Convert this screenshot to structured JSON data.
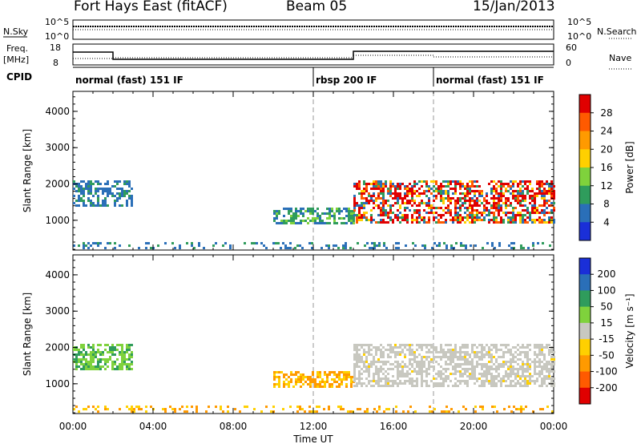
{
  "header": {
    "radar": "Fort Hays East (fitACF)",
    "beam": "Beam 05",
    "date": "15/Jan/2013"
  },
  "strips": {
    "nsky_label": "N.Sky",
    "nsky_ticks": [
      "10^5",
      "10^0"
    ],
    "nsearch_label": "N.Search",
    "nsearch_ticks": [
      "10^5",
      "10^0"
    ],
    "freq_label": "Freq.",
    "freq_unit": "[MHz]",
    "freq_ticks": [
      "18",
      "8"
    ],
    "nave_label": "Nave",
    "nave_ticks": [
      "60",
      "0"
    ],
    "cpid_label": "CPID",
    "cpid_segments": [
      {
        "label": "normal (fast) 151 IF",
        "start_h": 0
      },
      {
        "label": "rbsp 200 IF",
        "start_h": 12
      },
      {
        "label": "normal (fast) 151 IF",
        "start_h": 18
      }
    ]
  },
  "chart_data": [
    {
      "type": "heatmap",
      "name": "power",
      "ylabel": "Slant Range [km]",
      "ylim": [
        180,
        4550
      ],
      "yticks": [
        1000,
        2000,
        3000,
        4000
      ],
      "xlim": [
        0,
        24
      ],
      "colorbar": {
        "label": "Power [dB]",
        "ticks": [
          "28",
          "24",
          "20",
          "16",
          "12",
          "8",
          "4"
        ],
        "colors": [
          "#e00000",
          "#ff5a00",
          "#ff9a00",
          "#ffd000",
          "#7fd23c",
          "#2f9c5c",
          "#2a6fb8",
          "#1a2fd8"
        ]
      },
      "echo_regions": [
        {
          "name": "band-00-03h",
          "x": [
            0.0,
            2.9
          ],
          "y": [
            1400,
            2100
          ],
          "level": "low"
        },
        {
          "name": "band-10-14h",
          "x": [
            10.0,
            14.0
          ],
          "y": [
            900,
            1350
          ],
          "level": "mid"
        },
        {
          "name": "band-14-24h",
          "x": [
            14.0,
            24.0
          ],
          "y": [
            950,
            2100
          ],
          "level": "high"
        },
        {
          "name": "near-range",
          "x": [
            0.0,
            24.0
          ],
          "y": [
            250,
            400
          ],
          "level": "low"
        }
      ]
    },
    {
      "type": "heatmap",
      "name": "velocity",
      "ylabel": "Slant Range [km]",
      "ylim": [
        180,
        4550
      ],
      "yticks": [
        1000,
        2000,
        3000,
        4000
      ],
      "xlim": [
        0,
        24
      ],
      "xticks": [
        "00:00",
        "04:00",
        "08:00",
        "12:00",
        "16:00",
        "20:00",
        "00:00"
      ],
      "xlabel": "Time UT",
      "colorbar": {
        "label": "Velocity [m s⁻¹]",
        "ticks": [
          "200",
          "100",
          "50",
          "15",
          "-15",
          "-50",
          "-100",
          "-200"
        ],
        "colors": [
          "#1a2fd8",
          "#2a6fb8",
          "#2f9c5c",
          "#7fd23c",
          "#c8c8c0",
          "#ffd000",
          "#ff9a00",
          "#ff5a00",
          "#e00000"
        ]
      },
      "echo_regions": [
        {
          "name": "band-00-03h",
          "x": [
            0.0,
            2.9
          ],
          "y": [
            1400,
            2100
          ],
          "velocity": "+50"
        },
        {
          "name": "band-10-14h",
          "x": [
            10.0,
            14.0
          ],
          "y": [
            900,
            1350
          ],
          "velocity": "-50"
        },
        {
          "name": "band-14-24h",
          "x": [
            14.0,
            24.0
          ],
          "y": [
            950,
            2100
          ],
          "velocity": "ground scatter"
        },
        {
          "name": "near-range",
          "x": [
            0.0,
            24.0
          ],
          "y": [
            250,
            400
          ],
          "velocity": "-50"
        }
      ]
    }
  ]
}
